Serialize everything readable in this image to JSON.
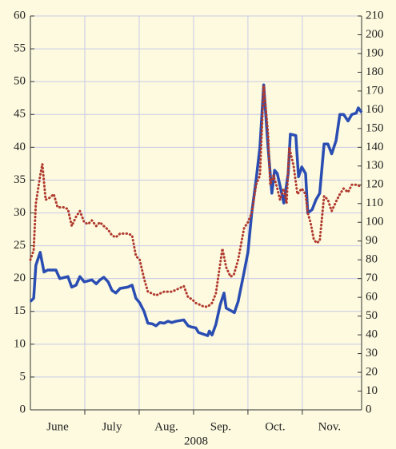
{
  "chart_data": {
    "type": "line",
    "x_label": "2008",
    "xlim": [
      0,
      6.09
    ],
    "xticks": [
      1,
      2,
      3,
      4,
      5
    ],
    "xtick_labels": [
      {
        "value": 0.5,
        "label": "June"
      },
      {
        "value": 1.5,
        "label": "July"
      },
      {
        "value": 2.5,
        "label": "Aug."
      },
      {
        "value": 3.5,
        "label": "Sep."
      },
      {
        "value": 4.5,
        "label": "Oct."
      },
      {
        "value": 5.5,
        "label": "Nov."
      }
    ],
    "ylim": [
      0,
      60
    ],
    "yticks": [
      0,
      5,
      10,
      15,
      20,
      25,
      30,
      35,
      40,
      45,
      50,
      55,
      60
    ],
    "y2lim": [
      0,
      210
    ],
    "y2ticks": [
      0,
      10,
      20,
      30,
      40,
      50,
      60,
      70,
      80,
      90,
      100,
      110,
      120,
      130,
      140,
      150,
      160,
      170,
      180,
      190,
      200,
      210
    ],
    "grid": true,
    "series": [
      {
        "color": "#2a4db3",
        "style": "solid",
        "x": [
          0,
          0.06,
          0.1,
          0.18,
          0.25,
          0.32,
          0.47,
          0.54,
          0.69,
          0.76,
          0.84,
          0.91,
          0.99,
          1.13,
          1.21,
          1.28,
          1.35,
          1.43,
          1.5,
          1.57,
          1.65,
          1.79,
          1.87,
          1.94,
          2.01,
          2.09,
          2.16,
          2.24,
          2.31,
          2.38,
          2.46,
          2.53,
          2.6,
          2.68,
          2.82,
          2.9,
          2.97,
          3.04,
          3.09,
          3.19,
          3.26,
          3.29,
          3.34,
          3.41,
          3.49,
          3.56,
          3.6,
          3.71,
          3.75,
          3.82,
          3.93,
          4.0,
          4.07,
          4.15,
          4.22,
          4.29,
          4.37,
          4.44,
          4.49,
          4.54,
          4.62,
          4.66,
          4.74,
          4.78,
          4.88,
          4.93,
          4.99,
          5.06,
          5.1,
          5.18,
          5.25,
          5.32,
          5.4,
          5.47,
          5.54,
          5.62,
          5.69,
          5.76,
          5.84,
          5.91,
          5.99,
          6.03,
          6.09
        ],
        "values": [
          16.5,
          17,
          22,
          24,
          21,
          21.3,
          21.3,
          20,
          20.3,
          18.7,
          19,
          20.3,
          19.5,
          19.8,
          19.2,
          19.8,
          20.2,
          19.5,
          18.2,
          17.8,
          18.5,
          18.7,
          19,
          17,
          16.3,
          15,
          13.2,
          13.1,
          12.8,
          13.3,
          13.2,
          13.5,
          13.3,
          13.5,
          13.7,
          12.8,
          12.6,
          12.5,
          11.8,
          11.5,
          11.3,
          12,
          11.4,
          13,
          16,
          17.8,
          15.5,
          15,
          14.8,
          16.5,
          21,
          24,
          30,
          35,
          40,
          49.5,
          40,
          33,
          36.5,
          36,
          33,
          31.5,
          36,
          42,
          41.8,
          35.5,
          37,
          36,
          30,
          30.5,
          32,
          33,
          40.5,
          40.5,
          39,
          41,
          45,
          45,
          44,
          45,
          45.2,
          46,
          45.3
        ]
      },
      {
        "color": "#b03a2e",
        "style": "dotted",
        "axis": "y2",
        "x": [
          0,
          0.06,
          0.1,
          0.18,
          0.22,
          0.28,
          0.35,
          0.43,
          0.5,
          0.62,
          0.69,
          0.76,
          0.84,
          0.91,
          0.99,
          1.06,
          1.13,
          1.21,
          1.28,
          1.35,
          1.43,
          1.5,
          1.57,
          1.65,
          1.79,
          1.87,
          1.94,
          2.01,
          2.09,
          2.16,
          2.24,
          2.31,
          2.38,
          2.46,
          2.53,
          2.6,
          2.68,
          2.75,
          2.82,
          2.9,
          2.97,
          3.04,
          3.12,
          3.19,
          3.26,
          3.34,
          3.41,
          3.46,
          3.53,
          3.6,
          3.68,
          3.74,
          3.82,
          3.93,
          4.0,
          4.07,
          4.15,
          4.22,
          4.29,
          4.37,
          4.41,
          4.47,
          4.54,
          4.59,
          4.66,
          4.71,
          4.76,
          4.84,
          4.91,
          4.99,
          5.06,
          5.1,
          5.15,
          5.21,
          5.26,
          5.32,
          5.4,
          5.47,
          5.54,
          5.62,
          5.69,
          5.76,
          5.84,
          5.91,
          5.99,
          6.09
        ],
        "values": [
          80,
          85,
          110,
          125,
          131,
          112,
          113,
          115,
          108,
          108,
          107,
          98,
          103,
          106,
          100,
          99,
          101,
          98,
          100,
          98,
          96,
          93,
          92,
          94,
          94,
          93,
          82,
          80,
          70,
          63,
          62,
          61,
          62,
          63,
          63,
          63,
          64,
          65,
          66,
          60,
          59,
          57,
          56,
          55,
          55,
          57,
          62,
          72,
          86,
          76,
          71,
          72,
          80,
          97,
          100,
          105,
          120,
          125,
          173,
          147,
          120,
          125,
          118,
          112,
          118,
          110,
          140,
          130,
          115,
          118,
          115,
          105,
          100,
          91,
          89,
          90,
          114,
          112,
          106,
          111,
          115,
          118,
          116,
          120,
          120,
          119
        ]
      }
    ]
  }
}
